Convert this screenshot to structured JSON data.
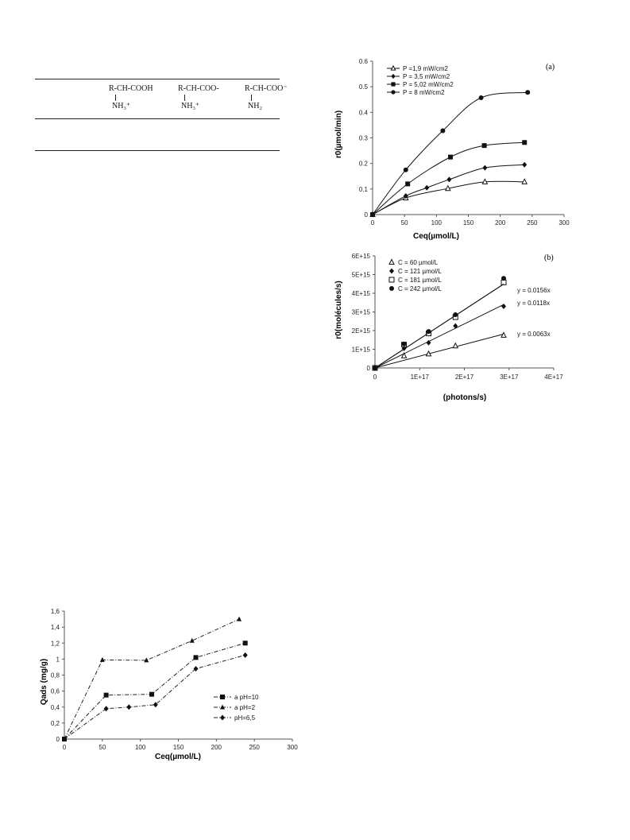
{
  "table": {
    "species": [
      {
        "top": "R-CH-COOH",
        "bottom": "NH₃⁺"
      },
      {
        "top": "R-CH-COO-",
        "bottom": "NH₃⁺"
      },
      {
        "top": "R-CH-COO⁻",
        "bottom": "NH₂"
      }
    ]
  },
  "chart_data": [
    {
      "id": "a",
      "type": "line",
      "panel_label": "(a)",
      "xlabel": "Ceq(µmol/L)",
      "ylabel": "r0(µmol/min)",
      "xlim": [
        0,
        300
      ],
      "ylim": [
        0,
        0.6
      ],
      "xticks": [
        "0",
        "50",
        "100",
        "150",
        "200",
        "250",
        "300"
      ],
      "yticks": [
        "0",
        "0.1",
        "0.2",
        "0.3",
        "0.4",
        "0.5",
        "0.6"
      ],
      "legend_position": "top-left",
      "series": [
        {
          "name": "P =1,9 mW/cm2",
          "marker": "triangle-open",
          "x": [
            0,
            52,
            118,
            176,
            238
          ],
          "y": [
            0,
            0.065,
            0.102,
            0.128,
            0.128
          ]
        },
        {
          "name": "P = 3,5 mW/cm2",
          "marker": "diamond",
          "x": [
            0,
            52,
            85,
            120,
            176,
            238
          ],
          "y": [
            0,
            0.073,
            0.105,
            0.137,
            0.183,
            0.195
          ]
        },
        {
          "name": "P = 5,02 mW/cm2",
          "marker": "square",
          "x": [
            0,
            55,
            122,
            175,
            238
          ],
          "y": [
            0,
            0.12,
            0.225,
            0.27,
            0.282
          ]
        },
        {
          "name": "P = 8 mW/cm2",
          "marker": "circle",
          "x": [
            0,
            52,
            110,
            170,
            243
          ],
          "y": [
            0,
            0.175,
            0.328,
            0.457,
            0.478
          ]
        }
      ]
    },
    {
      "id": "b",
      "type": "scatter",
      "panel_label": "(b)",
      "xlabel": "(photons/s)",
      "ylabel": "r0(molécules/s)",
      "xlim": [
        0,
        4e+17
      ],
      "ylim": [
        0,
        6000000000000000.0
      ],
      "xticks": [
        "0",
        "1E+17",
        "2E+17",
        "3E+17",
        "4E+17"
      ],
      "yticks": [
        "0",
        "1E+15",
        "2E+15",
        "3E+15",
        "4E+15",
        "5E+15",
        "6E+15"
      ],
      "legend_position": "top-left",
      "series": [
        {
          "name": "C = 60 µmol/L",
          "marker": "triangle-open",
          "x": [
            0,
            6.5e+16,
            1.2e+17,
            1.8e+17,
            2.88e+17
          ],
          "y": [
            0,
            650000000000000.0,
            750000000000000.0,
            1180000000000000.0,
            1750000000000000.0
          ],
          "fit": "y = 0.0063x",
          "slope": 0.0063
        },
        {
          "name": "C = 121 µmol/L",
          "marker": "diamond",
          "x": [
            0,
            6.5e+16,
            1.2e+17,
            1.8e+17,
            2.88e+17
          ],
          "y": [
            0,
            1050000000000000.0,
            1350000000000000.0,
            2250000000000000.0,
            3300000000000000.0
          ],
          "fit": "y = 0.0118x",
          "slope": 0.0118
        },
        {
          "name": "C = 181 µmol/L",
          "marker": "square-open",
          "x": [
            0,
            6.5e+16,
            1.2e+17,
            1.8e+17,
            2.88e+17
          ],
          "y": [
            0,
            1250000000000000.0,
            1850000000000000.0,
            2720000000000000.0,
            4580000000000000.0
          ],
          "fit": "",
          "slope": 0.0156
        },
        {
          "name": "C = 242 µmol/L",
          "marker": "circle",
          "x": [
            0,
            6.5e+16,
            1.2e+17,
            1.8e+17,
            2.88e+17
          ],
          "y": [
            0,
            1280000000000000.0,
            1950000000000000.0,
            2850000000000000.0,
            4800000000000000.0
          ],
          "fit": "y = 0.0156x",
          "slope": 0.0156
        }
      ]
    },
    {
      "id": "c",
      "type": "line",
      "xlabel": "Ceq(µmol/L)",
      "ylabel": "Qads (mg/g)",
      "xlim": [
        0,
        300
      ],
      "ylim": [
        0,
        1.6
      ],
      "xticks": [
        "0",
        "50",
        "100",
        "150",
        "200",
        "250",
        "300"
      ],
      "yticks": [
        "0",
        "0,2",
        "0,4",
        "0,6",
        "0,8",
        "1",
        "1,2",
        "1,4",
        "1,6"
      ],
      "legend_position": "bottom-right",
      "series": [
        {
          "name": "a pH=10",
          "marker": "square",
          "x": [
            0,
            55,
            115,
            173,
            238
          ],
          "y": [
            0,
            0.55,
            0.56,
            1.02,
            1.2
          ]
        },
        {
          "name": "a pH=2",
          "marker": "triangle",
          "x": [
            0,
            50,
            108,
            168,
            230
          ],
          "y": [
            0,
            0.99,
            0.985,
            1.23,
            1.5
          ]
        },
        {
          "name": "pH=6,5",
          "marker": "diamond",
          "x": [
            0,
            55,
            85,
            120,
            173,
            238
          ],
          "y": [
            0,
            0.38,
            0.4,
            0.43,
            0.88,
            1.05
          ]
        }
      ]
    }
  ]
}
